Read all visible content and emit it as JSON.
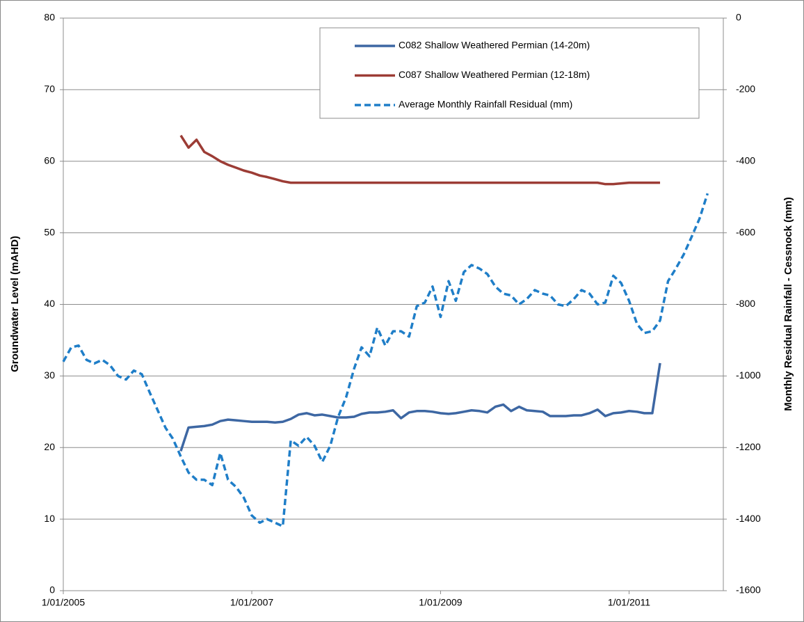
{
  "chart_data": {
    "type": "line",
    "y_label": "Groundwater Level (mAHD)",
    "y2_label": "Monthly Residual Rainfall - Cessnock (mm)",
    "xlim": [
      "2005-01-01",
      "2012-01-01"
    ],
    "xticks": [
      {
        "value": "2005-01-01",
        "label": "1/01/2005"
      },
      {
        "value": "2007-01-01",
        "label": "1/01/2007"
      },
      {
        "value": "2009-01-01",
        "label": "1/01/2009"
      },
      {
        "value": "2011-01-01",
        "label": "1/01/2011"
      }
    ],
    "ylim": [
      0,
      80
    ],
    "yticks": [
      0,
      10,
      20,
      30,
      40,
      50,
      60,
      70,
      80
    ],
    "y2lim": [
      -1600,
      0
    ],
    "y2ticks": [
      -1600,
      -1400,
      -1200,
      -1000,
      -800,
      -600,
      -400,
      -200,
      0
    ],
    "grid": true,
    "legend": "upper right",
    "series": [
      {
        "name": "C082 Shallow Weathered Permian (14-20m)",
        "color": "#3d67a3",
        "dashed": false,
        "x": [
          "2006-04",
          "2006-05",
          "2006-06",
          "2006-07",
          "2006-08",
          "2006-09",
          "2006-10",
          "2006-11",
          "2006-12",
          "2007-01",
          "2007-02",
          "2007-03",
          "2007-04",
          "2007-05",
          "2007-06",
          "2007-07",
          "2007-08",
          "2007-09",
          "2007-10",
          "2007-11",
          "2007-12",
          "2008-01",
          "2008-02",
          "2008-03",
          "2008-04",
          "2008-05",
          "2008-06",
          "2008-07",
          "2008-08",
          "2008-09",
          "2008-10",
          "2008-11",
          "2008-12",
          "2009-01",
          "2009-02",
          "2009-03",
          "2009-04",
          "2009-05",
          "2009-06",
          "2009-07",
          "2009-08",
          "2009-09",
          "2009-10",
          "2009-11",
          "2009-12",
          "2010-01",
          "2010-02",
          "2010-03",
          "2010-04",
          "2010-05",
          "2010-06",
          "2010-07",
          "2010-08",
          "2010-09",
          "2010-10",
          "2010-11",
          "2010-12",
          "2011-01",
          "2011-02",
          "2011-03",
          "2011-04",
          "2011-05"
        ],
        "values": [
          19.5,
          22.8,
          22.9,
          23.0,
          23.2,
          23.7,
          23.9,
          23.8,
          23.7,
          23.6,
          23.6,
          23.6,
          23.5,
          23.6,
          24.0,
          24.6,
          24.8,
          24.5,
          24.6,
          24.4,
          24.2,
          24.2,
          24.3,
          24.7,
          24.9,
          24.9,
          25.0,
          25.2,
          24.1,
          24.9,
          25.1,
          25.1,
          25.0,
          24.8,
          24.7,
          24.8,
          25.0,
          25.2,
          25.1,
          24.9,
          25.7,
          26.0,
          25.1,
          25.7,
          25.2,
          25.1,
          25.0,
          24.4,
          24.4,
          24.4,
          24.5,
          24.5,
          24.8,
          25.3,
          24.4,
          24.8,
          24.9,
          25.1,
          25.0,
          24.8,
          24.8,
          31.8
        ]
      },
      {
        "name": "C087 Shallow Weathered Permian (12-18m)",
        "color": "#9c3c35",
        "dashed": false,
        "x": [
          "2006-04",
          "2006-05",
          "2006-06",
          "2006-07",
          "2006-08",
          "2006-09",
          "2006-10",
          "2006-11",
          "2006-12",
          "2007-01",
          "2007-02",
          "2007-03",
          "2007-04",
          "2007-05",
          "2007-06",
          "2007-07",
          "2007-08",
          "2007-09",
          "2007-10",
          "2007-11",
          "2007-12",
          "2008-01",
          "2008-02",
          "2008-03",
          "2008-04",
          "2008-05",
          "2008-06",
          "2008-07",
          "2008-08",
          "2008-09",
          "2008-10",
          "2008-11",
          "2008-12",
          "2009-01",
          "2009-02",
          "2009-03",
          "2009-04",
          "2009-05",
          "2009-06",
          "2009-07",
          "2009-08",
          "2009-09",
          "2009-10",
          "2009-11",
          "2009-12",
          "2010-01",
          "2010-02",
          "2010-03",
          "2010-04",
          "2010-05",
          "2010-06",
          "2010-07",
          "2010-08",
          "2010-09",
          "2010-10",
          "2010-11",
          "2010-12",
          "2011-01",
          "2011-02",
          "2011-03",
          "2011-04",
          "2011-05"
        ],
        "values": [
          63.6,
          61.9,
          63.0,
          61.3,
          60.7,
          60.0,
          59.5,
          59.1,
          58.7,
          58.4,
          58.0,
          57.8,
          57.5,
          57.2,
          57.0,
          57,
          57,
          57,
          57,
          57,
          57,
          57,
          57,
          57,
          57,
          57,
          57,
          57,
          57,
          57,
          57,
          57,
          57,
          57,
          57,
          57,
          57,
          57,
          57,
          57,
          57,
          57,
          57,
          57,
          57,
          57,
          57,
          57,
          57,
          57,
          57,
          57,
          57,
          57,
          56.8,
          56.8,
          56.9,
          57,
          57,
          57,
          57,
          57
        ]
      },
      {
        "name": "Average Monthly Rainfall Residual (mm)",
        "color": "#1f7ec8",
        "dashed": true,
        "axis": "y2",
        "x": [
          "2005-01",
          "2005-02",
          "2005-03",
          "2005-04",
          "2005-05",
          "2005-06",
          "2005-07",
          "2005-08",
          "2005-09",
          "2005-10",
          "2005-11",
          "2005-12",
          "2006-01",
          "2006-02",
          "2006-03",
          "2006-04",
          "2006-05",
          "2006-06",
          "2006-07",
          "2006-08",
          "2006-09",
          "2006-10",
          "2006-11",
          "2006-12",
          "2007-01",
          "2007-02",
          "2007-03",
          "2007-04",
          "2007-05",
          "2007-06",
          "2007-07",
          "2007-08",
          "2007-09",
          "2007-10",
          "2007-11",
          "2007-12",
          "2008-01",
          "2008-02",
          "2008-03",
          "2008-04",
          "2008-05",
          "2008-06",
          "2008-07",
          "2008-08",
          "2008-09",
          "2008-10",
          "2008-11",
          "2008-12",
          "2009-01",
          "2009-02",
          "2009-03",
          "2009-04",
          "2009-05",
          "2009-06",
          "2009-07",
          "2009-08",
          "2009-09",
          "2009-10",
          "2009-11",
          "2009-12",
          "2010-01",
          "2010-02",
          "2010-03",
          "2010-04",
          "2010-05",
          "2010-06",
          "2010-07",
          "2010-08",
          "2010-09",
          "2010-10",
          "2010-11",
          "2010-12",
          "2011-01",
          "2011-02",
          "2011-03",
          "2011-04",
          "2011-05",
          "2011-06",
          "2011-07",
          "2011-08",
          "2011-09",
          "2011-10",
          "2011-11"
        ],
        "values": [
          -960,
          -920,
          -915,
          -955,
          -965,
          -955,
          -970,
          -1000,
          -1010,
          -985,
          -995,
          -1045,
          -1095,
          -1145,
          -1175,
          -1225,
          -1270,
          -1290,
          -1290,
          -1305,
          -1215,
          -1290,
          -1310,
          -1340,
          -1390,
          -1410,
          -1400,
          -1410,
          -1420,
          -1180,
          -1195,
          -1170,
          -1195,
          -1240,
          -1195,
          -1115,
          -1060,
          -980,
          -920,
          -945,
          -865,
          -915,
          -875,
          -875,
          -890,
          -805,
          -795,
          -750,
          -835,
          -735,
          -790,
          -710,
          -690,
          -700,
          -715,
          -750,
          -770,
          -775,
          -800,
          -785,
          -760,
          -770,
          -775,
          -800,
          -805,
          -785,
          -760,
          -770,
          -800,
          -795,
          -720,
          -740,
          -790,
          -855,
          -880,
          -875,
          -845,
          -735,
          -700,
          -660,
          -610,
          -560,
          -490
        ]
      }
    ]
  }
}
